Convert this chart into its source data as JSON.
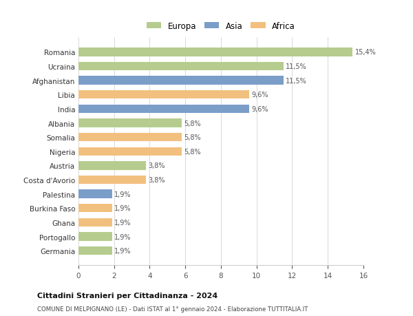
{
  "countries": [
    "Romania",
    "Ucraina",
    "Afghanistan",
    "Libia",
    "India",
    "Albania",
    "Somalia",
    "Nigeria",
    "Austria",
    "Costa d'Avorio",
    "Palestina",
    "Burkina Faso",
    "Ghana",
    "Portogallo",
    "Germania"
  ],
  "values": [
    15.4,
    11.5,
    11.5,
    9.6,
    9.6,
    5.8,
    5.8,
    5.8,
    3.8,
    3.8,
    1.9,
    1.9,
    1.9,
    1.9,
    1.9
  ],
  "labels": [
    "15,4%",
    "11,5%",
    "11,5%",
    "9,6%",
    "9,6%",
    "5,8%",
    "5,8%",
    "5,8%",
    "3,8%",
    "3,8%",
    "1,9%",
    "1,9%",
    "1,9%",
    "1,9%",
    "1,9%"
  ],
  "continents": [
    "Europa",
    "Europa",
    "Asia",
    "Africa",
    "Asia",
    "Europa",
    "Africa",
    "Africa",
    "Europa",
    "Africa",
    "Asia",
    "Africa",
    "Africa",
    "Europa",
    "Europa"
  ],
  "colors": {
    "Europa": "#b5cc8e",
    "Asia": "#7b9ec9",
    "Africa": "#f2c07e"
  },
  "bg_color": "#ffffff",
  "grid_color": "#d8d8d8",
  "title1": "Cittadini Stranieri per Cittadinanza - 2024",
  "title2": "COMUNE DI MELPIGNANO (LE) - Dati ISTAT al 1° gennaio 2024 - Elaborazione TUTTITALIA.IT",
  "xlim": [
    0,
    16
  ],
  "xticks": [
    0,
    2,
    4,
    6,
    8,
    10,
    12,
    14,
    16
  ],
  "legend_labels": [
    "Europa",
    "Asia",
    "Africa"
  ],
  "legend_colors": [
    "#b5cc8e",
    "#7b9ec9",
    "#f2c07e"
  ]
}
